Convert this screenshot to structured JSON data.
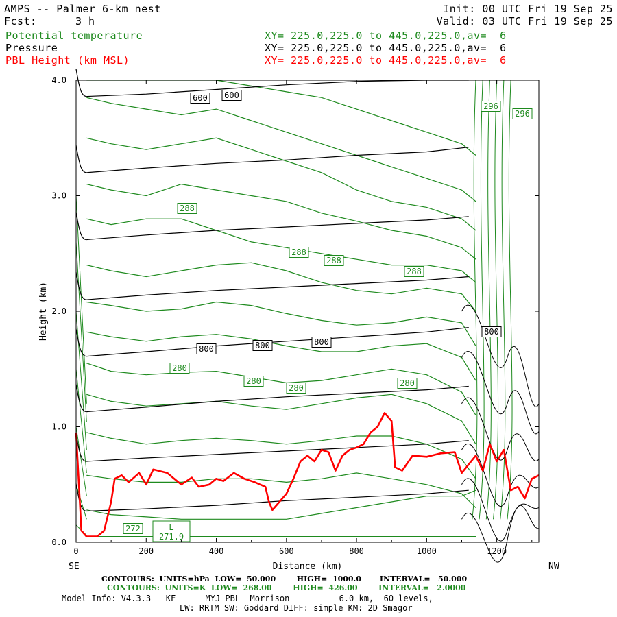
{
  "header": {
    "title": "AMPS -- Palmer 6-km nest",
    "init": "Init: 00 UTC Fri 19 Sep 25",
    "fcst_label": "Fcst:",
    "fcst_value": "3 h",
    "valid": "Valid: 03 UTC Fri 19 Sep 25",
    "fields": [
      {
        "name": "Potential temperature",
        "xy": "XY= 225.0,225.0 to 445.0,225.0,av=  6",
        "color": "#1e8a1e"
      },
      {
        "name": "Pressure",
        "xy": "XY= 225.0,225.0 to 445.0,225.0,av=  6",
        "color": "#000000"
      },
      {
        "name": "PBL Height (km MSL)",
        "xy": "XY= 225.0,225.0 to 445.0,225.0,av=  6",
        "color": "#ff0000"
      }
    ]
  },
  "chart_data": {
    "type": "line",
    "xlabel": "Distance (km)",
    "ylabel": "Height (km)",
    "xlim": [
      0,
      1320
    ],
    "ylim": [
      0,
      4.0
    ],
    "x_ticks": [
      0,
      200,
      400,
      600,
      800,
      1000,
      1200
    ],
    "y_ticks": [
      "0.0",
      "1.0",
      "2.0",
      "3.0",
      "4.0"
    ],
    "left_end_label": "SE",
    "right_end_label": "NW",
    "pressure_contours_hPa": {
      "levels": [
        {
          "label": "600",
          "heights_km": [
            3.86,
            3.88,
            3.92,
            3.96,
            3.99,
            4.02,
            4.06
          ]
        },
        {
          "label": "",
          "heights_km": [
            3.2,
            3.24,
            3.28,
            3.31,
            3.35,
            3.38,
            3.42
          ]
        },
        {
          "label": "",
          "heights_km": [
            2.62,
            2.66,
            2.7,
            2.73,
            2.76,
            2.79,
            2.82
          ]
        },
        {
          "label": "",
          "heights_km": [
            2.1,
            2.14,
            2.18,
            2.21,
            2.24,
            2.27,
            2.3
          ]
        },
        {
          "label": "800",
          "heights_km": [
            1.61,
            1.65,
            1.7,
            1.74,
            1.78,
            1.82,
            1.86
          ]
        },
        {
          "label": "",
          "heights_km": [
            1.13,
            1.17,
            1.22,
            1.26,
            1.29,
            1.32,
            1.35
          ]
        },
        {
          "label": "",
          "heights_km": [
            0.7,
            0.73,
            0.76,
            0.79,
            0.82,
            0.85,
            0.88
          ]
        },
        {
          "label": "",
          "heights_km": [
            0.27,
            0.29,
            0.32,
            0.36,
            0.39,
            0.42,
            0.45
          ]
        }
      ],
      "x_km": [
        30,
        200,
        400,
        600,
        800,
        1000,
        1120
      ]
    },
    "theta_contours_K": {
      "x_km": [
        30,
        100,
        200,
        300,
        400,
        500,
        600,
        700,
        800,
        900,
        1000,
        1100,
        1140
      ],
      "levels": [
        {
          "label": "",
          "heights_km": [
            0.05,
            0.05,
            0.05,
            0.05,
            0.05,
            0.05,
            0.05,
            0.05,
            0.05,
            0.05,
            0.05,
            0.05,
            0.05
          ]
        },
        {
          "label": "272",
          "heights_km": [
            0.28,
            0.24,
            0.22,
            0.2,
            0.2,
            0.2,
            0.2,
            0.25,
            0.3,
            0.35,
            0.4,
            0.4,
            0.45
          ]
        },
        {
          "label": "",
          "heights_km": [
            0.58,
            0.55,
            0.52,
            0.52,
            0.55,
            0.55,
            0.52,
            0.55,
            0.6,
            0.55,
            0.5,
            0.42,
            0.3
          ]
        },
        {
          "label": "",
          "heights_km": [
            0.95,
            0.9,
            0.85,
            0.88,
            0.9,
            0.88,
            0.85,
            0.88,
            0.92,
            0.92,
            0.85,
            0.72,
            0.55
          ]
        },
        {
          "label": "280",
          "heights_km": [
            1.28,
            1.22,
            1.18,
            1.2,
            1.22,
            1.18,
            1.15,
            1.2,
            1.25,
            1.28,
            1.2,
            1.05,
            0.85
          ]
        },
        {
          "label": "280",
          "heights_km": [
            1.55,
            1.48,
            1.45,
            1.47,
            1.48,
            1.43,
            1.38,
            1.4,
            1.45,
            1.5,
            1.45,
            1.3,
            1.1
          ]
        },
        {
          "label": "",
          "heights_km": [
            1.82,
            1.78,
            1.74,
            1.78,
            1.8,
            1.76,
            1.7,
            1.65,
            1.65,
            1.7,
            1.72,
            1.6,
            1.4
          ]
        },
        {
          "label": "",
          "heights_km": [
            2.08,
            2.05,
            2.0,
            2.02,
            2.08,
            2.05,
            1.98,
            1.92,
            1.88,
            1.9,
            1.95,
            1.9,
            1.7
          ]
        },
        {
          "label": "288",
          "heights_km": [
            2.4,
            2.35,
            2.3,
            2.35,
            2.4,
            2.42,
            2.35,
            2.25,
            2.18,
            2.15,
            2.2,
            2.15,
            2.0
          ]
        },
        {
          "label": "288",
          "heights_km": [
            2.8,
            2.75,
            2.8,
            2.8,
            2.7,
            2.6,
            2.55,
            2.5,
            2.45,
            2.4,
            2.4,
            2.35,
            2.25
          ]
        },
        {
          "label": "",
          "heights_km": [
            3.1,
            3.05,
            3.0,
            3.1,
            3.05,
            3.0,
            2.95,
            2.85,
            2.78,
            2.7,
            2.65,
            2.55,
            2.45
          ]
        },
        {
          "label": "",
          "heights_km": [
            3.5,
            3.45,
            3.4,
            3.45,
            3.5,
            3.4,
            3.3,
            3.2,
            3.05,
            2.95,
            2.9,
            2.8,
            2.7
          ]
        },
        {
          "label": "",
          "heights_km": [
            3.85,
            3.8,
            3.75,
            3.7,
            3.75,
            3.65,
            3.55,
            3.45,
            3.35,
            3.25,
            3.15,
            3.05,
            2.95
          ]
        },
        {
          "label": "296",
          "heights_km": [
            4.0,
            4.0,
            4.0,
            4.0,
            4.0,
            3.95,
            3.9,
            3.85,
            3.75,
            3.65,
            3.55,
            3.45,
            3.35
          ]
        }
      ],
      "labels_shown": [
        "288",
        "288",
        "288",
        "288",
        "280",
        "280",
        "280",
        "280",
        "272",
        "296",
        "296"
      ],
      "low_marker": {
        "symbol": "L",
        "value": "271.9"
      }
    },
    "pressure_label_texts": [
      "600",
      "600",
      "800",
      "800",
      "800",
      "800"
    ],
    "series": [
      {
        "name": "PBL Height (km MSL)",
        "color": "#ff0000",
        "x": [
          0,
          15,
          30,
          60,
          80,
          100,
          110,
          130,
          150,
          180,
          200,
          220,
          260,
          300,
          330,
          350,
          380,
          400,
          420,
          450,
          480,
          510,
          540,
          550,
          560,
          580,
          600,
          620,
          640,
          660,
          680,
          700,
          720,
          740,
          760,
          780,
          800,
          820,
          840,
          860,
          880,
          900,
          910,
          930,
          960,
          1000,
          1040,
          1080,
          1100,
          1140,
          1160,
          1180,
          1200,
          1220,
          1240,
          1260,
          1280,
          1300,
          1320
        ],
        "values": [
          0.95,
          0.1,
          0.05,
          0.05,
          0.1,
          0.35,
          0.55,
          0.58,
          0.52,
          0.6,
          0.5,
          0.63,
          0.6,
          0.5,
          0.56,
          0.48,
          0.5,
          0.55,
          0.53,
          0.6,
          0.55,
          0.52,
          0.48,
          0.35,
          0.28,
          0.35,
          0.42,
          0.55,
          0.7,
          0.75,
          0.7,
          0.8,
          0.78,
          0.62,
          0.75,
          0.8,
          0.82,
          0.85,
          0.95,
          1.0,
          1.12,
          1.05,
          0.65,
          0.62,
          0.75,
          0.74,
          0.77,
          0.78,
          0.6,
          0.75,
          0.62,
          0.85,
          0.7,
          0.8,
          0.45,
          0.48,
          0.38,
          0.55,
          0.58
        ]
      }
    ]
  },
  "footer": {
    "line1": "CONTOURS:  UNITS=hPa  LOW=  50.000        HIGH=  1000.0       INTERVAL=   50.000",
    "line2": "CONTOURS:  UNITS=K  LOW=  268.00        HIGH=  426.00        INTERVAL=   2.0000",
    "line3": "Model Info: V4.3.3   KF      MYJ PBL  Morrison          6.0 km,  60 levels,",
    "line4": "LW: RRTM SW: Goddard DIFF: simple KM: 2D Smagor"
  }
}
